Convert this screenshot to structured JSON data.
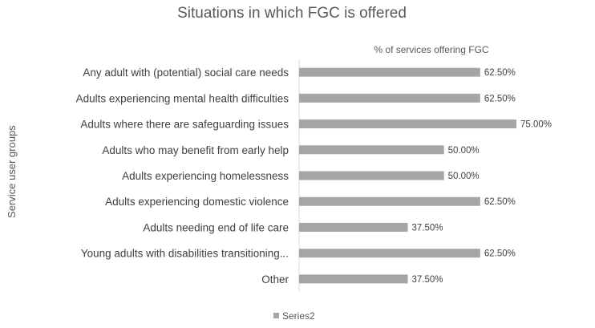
{
  "chart_data": {
    "type": "bar",
    "orientation": "horizontal",
    "title": "Situations in which FGC is offered",
    "subtitle": "% of services  offering FGC",
    "xlabel": "",
    "ylabel": "Service user groups",
    "xlim": [
      0,
      75
    ],
    "grid": false,
    "legend_placement": "bottom-left",
    "categories": [
      "Any adult with (potential) social care needs",
      "Adults experiencing mental health difficulties",
      "Adults where there are safeguarding issues",
      "Adults who may benefit from early help",
      "Adults experiencing homelessness",
      "Adults experiencing domestic violence ",
      "Adults needing end of life care",
      "Young adults with disabilities transitioning...",
      "Other"
    ],
    "series": [
      {
        "name": "Series2",
        "color": "#a5a5a5",
        "values": [
          62.5,
          62.5,
          75.0,
          50.0,
          50.0,
          62.5,
          37.5,
          62.5,
          37.5
        ],
        "labels": [
          "62.50%",
          "62.50%",
          "75.00%",
          "50.00%",
          "50.00%",
          "62.50%",
          "37.50%",
          "62.50%",
          "37.50%"
        ]
      }
    ]
  }
}
